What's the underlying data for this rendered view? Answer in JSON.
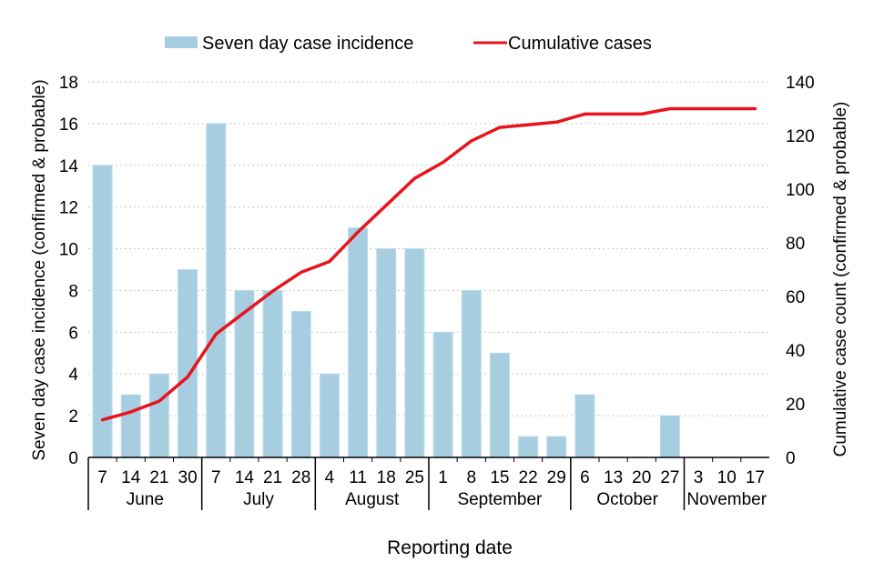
{
  "chart_data": {
    "type": "bar",
    "title": "",
    "xlabel": "Reporting date",
    "ylabel": "Seven day case incidence (confirmed & probable)",
    "y2label": "Cumulative case count (confirmed & probable)",
    "ylim": [
      0,
      18
    ],
    "y2lim": [
      0,
      140
    ],
    "yticks": [
      0,
      2,
      4,
      6,
      8,
      10,
      12,
      14,
      16,
      18
    ],
    "y2ticks": [
      0,
      20,
      40,
      60,
      80,
      100,
      120,
      140
    ],
    "grid": true,
    "legend_position": "top-center",
    "categories": [
      "7",
      "14",
      "21",
      "30",
      "7",
      "14",
      "21",
      "28",
      "4",
      "11",
      "18",
      "25",
      "1",
      "8",
      "15",
      "22",
      "29",
      "6",
      "13",
      "20",
      "27",
      "3",
      "10",
      "17"
    ],
    "months": [
      {
        "name": "June",
        "count": 4
      },
      {
        "name": "July",
        "count": 4
      },
      {
        "name": "August",
        "count": 4
      },
      {
        "name": "September",
        "count": 5
      },
      {
        "name": "October",
        "count": 4
      },
      {
        "name": "November",
        "count": 3
      }
    ],
    "series": [
      {
        "name": "Seven day case incidence",
        "type": "bar",
        "axis": "left",
        "color": "#A6CDE0",
        "values": [
          14,
          3,
          4,
          9,
          16,
          8,
          8,
          7,
          4,
          11,
          10,
          10,
          6,
          8,
          5,
          1,
          1,
          3,
          0,
          0,
          2,
          0,
          0,
          0
        ]
      },
      {
        "name": "Cumulative cases",
        "type": "line",
        "axis": "right",
        "color": "#E8141C",
        "values": [
          14,
          17,
          21,
          30,
          46,
          54,
          62,
          69,
          73,
          84,
          94,
          104,
          110,
          118,
          123,
          124,
          125,
          128,
          128,
          128,
          130,
          130,
          130,
          130
        ]
      }
    ]
  }
}
